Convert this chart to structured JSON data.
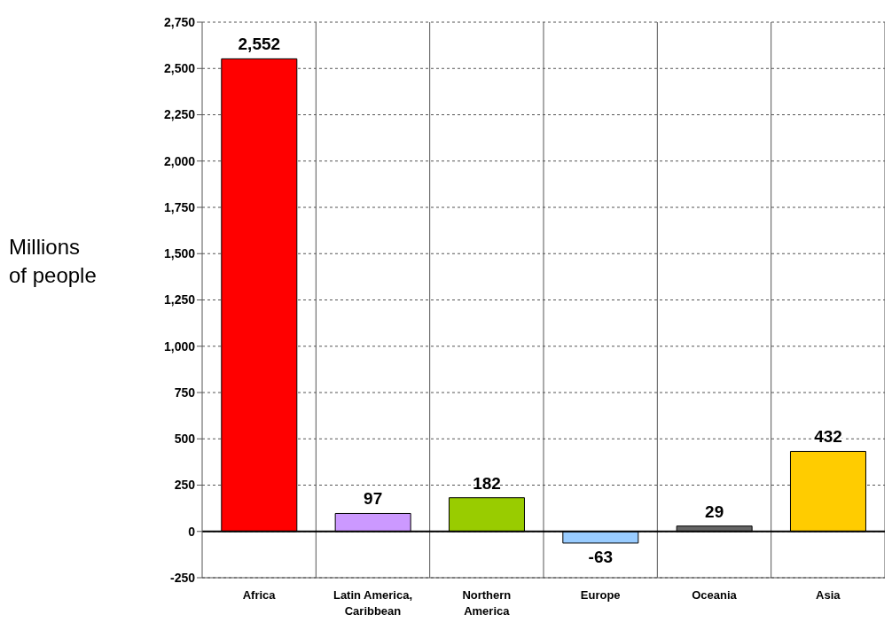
{
  "chart_data": {
    "type": "bar",
    "ylabel": "Millions of people",
    "categories": [
      "Africa",
      "Latin America, Caribbean",
      "Northern America",
      "Europe",
      "Oceania",
      "Asia"
    ],
    "values": [
      2552,
      97,
      182,
      -63,
      29,
      432
    ],
    "colors": [
      "#ff0000",
      "#cc99ff",
      "#99cc00",
      "#99ccff",
      "#666666",
      "#ffcc00"
    ],
    "ylim": [
      -250,
      2750
    ],
    "yticks": [
      {
        "value": -250,
        "label": "-250"
      },
      0,
      250,
      500,
      750,
      {
        "value": 1000,
        "label": "1,000"
      },
      {
        "value": 1250,
        "label": "1,250"
      },
      {
        "value": 1500,
        "label": "1,500"
      },
      {
        "value": 1750,
        "label": "1,750"
      },
      {
        "value": 2000,
        "label": "2,000"
      },
      {
        "value": 2250,
        "label": "2,250"
      },
      {
        "value": 2500,
        "label": "2,500"
      },
      {
        "value": 2750,
        "label": "2,750"
      }
    ],
    "value_labels": [
      "2,552",
      "97",
      "182",
      "-63",
      "29",
      "432"
    ],
    "grid": true
  }
}
